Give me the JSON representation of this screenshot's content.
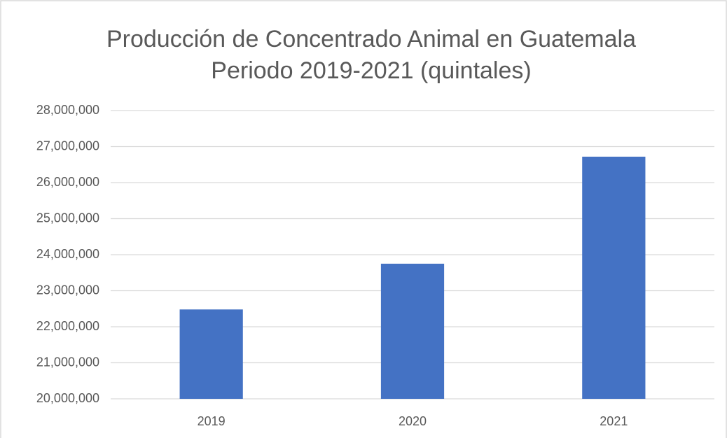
{
  "chart_data": {
    "type": "bar",
    "title": [
      "Producción de Concentrado Animal en Guatemala",
      "Periodo 2019-2021 (quintales)"
    ],
    "categories": [
      "2019",
      "2020",
      "2021"
    ],
    "values": [
      22480000,
      23750000,
      26720000
    ],
    "color": "#4472c4",
    "ylim": [
      20000000,
      28000000
    ],
    "yticks": [
      {
        "value": 20000000,
        "label": "20,000,000"
      },
      {
        "value": 21000000,
        "label": "21,000,000"
      },
      {
        "value": 22000000,
        "label": "22,000,000"
      },
      {
        "value": 23000000,
        "label": "23,000,000"
      },
      {
        "value": 24000000,
        "label": "24,000,000"
      },
      {
        "value": 25000000,
        "label": "25,000,000"
      },
      {
        "value": 26000000,
        "label": "26,000,000"
      },
      {
        "value": 27000000,
        "label": "27,000,000"
      },
      {
        "value": 28000000,
        "label": "28,000,000"
      }
    ],
    "grid": true
  }
}
